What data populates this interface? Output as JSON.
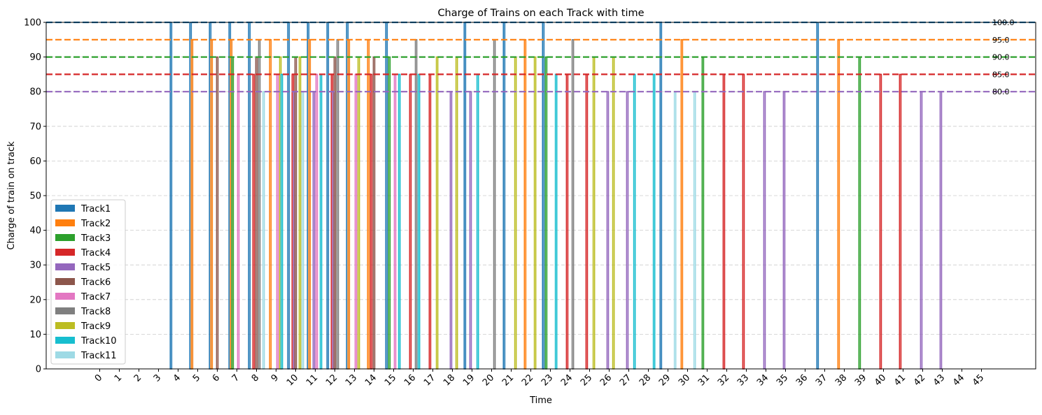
{
  "chart_data": {
    "type": "bar",
    "title": "Charge of Trains on each Track with time",
    "xlabel": "Time",
    "ylabel": "Charge of train on track",
    "ylim": [
      0,
      100
    ],
    "yticks": [
      0,
      10,
      20,
      30,
      40,
      50,
      60,
      70,
      80,
      90,
      100
    ],
    "x": [
      0,
      1,
      2,
      3,
      4,
      5,
      6,
      7,
      8,
      9,
      10,
      11,
      12,
      13,
      14,
      15,
      16,
      17,
      18,
      19,
      20,
      21,
      22,
      23,
      24,
      25,
      26,
      27,
      28,
      29,
      30,
      31,
      32,
      33,
      34,
      35,
      36,
      37,
      38,
      39,
      40,
      41,
      42,
      43,
      44,
      45
    ],
    "grid": "horizontal dashed",
    "legend_position": "lower-left",
    "reference_lines": [
      {
        "value": 100,
        "label": "100.0",
        "color": "#1f77b4"
      },
      {
        "value": 95,
        "label": "95.0",
        "color": "#8c564b"
      },
      {
        "value": 90,
        "label": "90.0",
        "color": "#808000"
      },
      {
        "value": 85,
        "label": "85.0",
        "color": "#17becf"
      },
      {
        "value": 80,
        "label": "80.0",
        "color": "#9ecae1"
      }
    ],
    "series": [
      {
        "name": "Track1",
        "color": "#1f77b4",
        "value": 100,
        "x": [
          4,
          5,
          6,
          7,
          8,
          10,
          11,
          12,
          13,
          15,
          19,
          21,
          23,
          29,
          37
        ]
      },
      {
        "name": "Track2",
        "color": "#ff7f0e",
        "value": 95,
        "x": [
          5,
          6,
          7,
          9,
          11,
          13,
          14,
          22,
          30,
          38
        ]
      },
      {
        "name": "Track3",
        "color": "#2ca02c",
        "value": 90,
        "x": [
          7,
          15,
          23,
          31,
          39
        ]
      },
      {
        "name": "Track4",
        "color": "#d62728",
        "value": 85,
        "x": [
          8,
          10,
          12,
          14,
          16,
          17,
          24,
          25,
          32,
          33,
          40,
          41
        ]
      },
      {
        "name": "Track5",
        "color": "#9467bd",
        "value": 80,
        "x": [
          10,
          11,
          12,
          18,
          19,
          26,
          27,
          34,
          35,
          42,
          43
        ]
      },
      {
        "name": "Track6",
        "color": "#8c564b",
        "value": 90,
        "x": [
          6,
          8,
          10,
          12,
          14
        ]
      },
      {
        "name": "Track7",
        "color": "#e377c2",
        "value": 85,
        "x": [
          7,
          9,
          11,
          13,
          15
        ]
      },
      {
        "name": "Track8",
        "color": "#7f7f7f",
        "value": 95,
        "x": [
          8,
          12,
          16,
          20,
          24
        ]
      },
      {
        "name": "Track9",
        "color": "#bcbd22",
        "value": 90,
        "x": [
          9,
          10,
          13,
          17,
          18,
          21,
          22,
          25,
          26
        ]
      },
      {
        "name": "Track10",
        "color": "#17becf",
        "value": 85,
        "x": [
          9,
          11,
          15,
          16,
          19,
          23,
          27,
          28
        ]
      },
      {
        "name": "Track11",
        "color": "#9edae5",
        "value": 80,
        "x": [
          8,
          10,
          29,
          30
        ]
      }
    ]
  }
}
